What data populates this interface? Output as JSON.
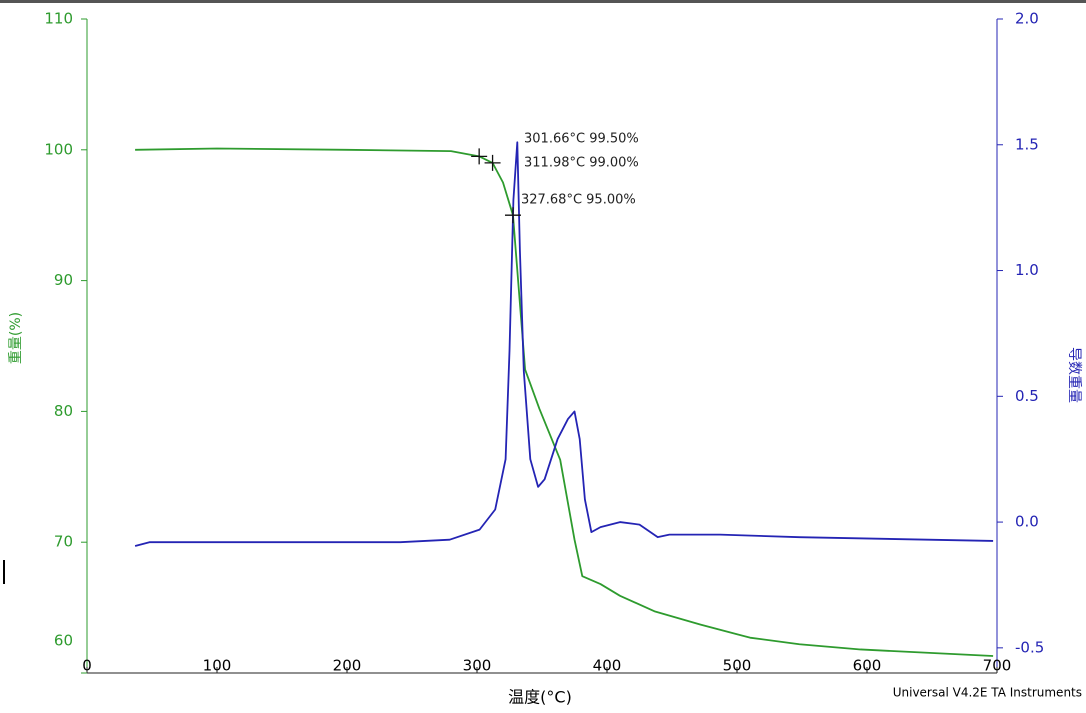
{
  "chart_data": {
    "type": "line",
    "x_label": "温度(°C)",
    "y_label": "重量(%)",
    "y2_label": "导数重量",
    "footer": "Universal V4.2E TA Instruments",
    "xlim": [
      0,
      700
    ],
    "xticks": [
      0,
      100,
      200,
      300,
      400,
      500,
      600,
      700
    ],
    "ylim": [
      60,
      110
    ],
    "yticks": [
      60,
      70,
      80,
      90,
      100,
      110
    ],
    "y2lim": [
      -0.6,
      2.0
    ],
    "y2ticks": [
      -0.5,
      {
        "value": 0,
        "label": "0.0"
      },
      0.5,
      {
        "value": 1,
        "label": "1.0"
      },
      1.5,
      {
        "value": 2,
        "label": "2.0"
      }
    ],
    "series": [
      {
        "color": "#2e9b2e",
        "x": [
          37,
          100,
          200,
          280,
          301.66,
          311.98,
          320,
          327.68,
          337,
          348,
          364,
          375,
          381,
          395,
          410,
          437,
          472,
          510,
          548,
          595,
          697
        ],
        "values": [
          100,
          100.1,
          100,
          99.9,
          99.5,
          99.0,
          97.5,
          95.0,
          83.2,
          80.2,
          76.3,
          70.2,
          67.4,
          66.8,
          65.9,
          64.7,
          63.7,
          62.7,
          62.2,
          61.8,
          61.3
        ]
      },
      {
        "color": "#2424b4",
        "axis": "y2",
        "x": [
          37,
          48,
          241,
          279,
          302,
          314,
          322,
          325,
          328,
          331,
          333,
          336,
          341,
          347,
          352,
          362,
          370,
          375,
          379,
          383,
          388,
          395,
          410,
          425,
          439,
          448,
          487,
          548,
          697
        ],
        "values": [
          -0.095,
          -0.08,
          -0.08,
          -0.07,
          -0.03,
          0.05,
          0.25,
          0.68,
          1.28,
          1.51,
          1.08,
          0.6,
          0.25,
          0.14,
          0.17,
          0.33,
          0.41,
          0.44,
          0.33,
          0.09,
          -0.04,
          -0.02,
          0.0,
          -0.01,
          -0.06,
          -0.05,
          -0.05,
          -0.06,
          -0.075
        ]
      }
    ],
    "annotations": [
      {
        "x": 301.66,
        "y": 99.5,
        "label": "301.66°C 99.50%"
      },
      {
        "x": 311.98,
        "y": 99.0,
        "label": "311.98°C 99.00%"
      },
      {
        "x": 327.68,
        "y": 95.0,
        "label": "327.68°C 95.00%"
      }
    ]
  }
}
